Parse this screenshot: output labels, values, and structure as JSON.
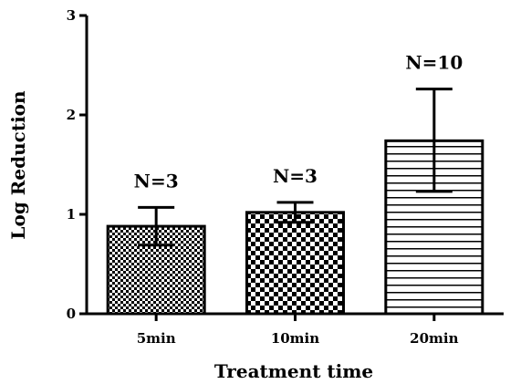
{
  "chart_data": {
    "type": "bar",
    "title": "",
    "xlabel": "Treatment time",
    "ylabel": "Log Reduction",
    "categories": [
      "5min",
      "10min",
      "20min"
    ],
    "values": [
      0.88,
      1.02,
      1.74
    ],
    "error_upper": [
      1.07,
      1.12,
      2.26
    ],
    "error_lower": [
      0.69,
      0.92,
      1.23
    ],
    "bar_labels": [
      "N=3",
      "N=3",
      "N=10"
    ],
    "patterns": [
      "fine-checker",
      "coarse-checker",
      "horizontal-lines"
    ],
    "ylim": [
      0,
      3
    ],
    "yticks": [
      "0",
      "1",
      "2",
      "3"
    ],
    "grid": false,
    "legend": "none"
  }
}
